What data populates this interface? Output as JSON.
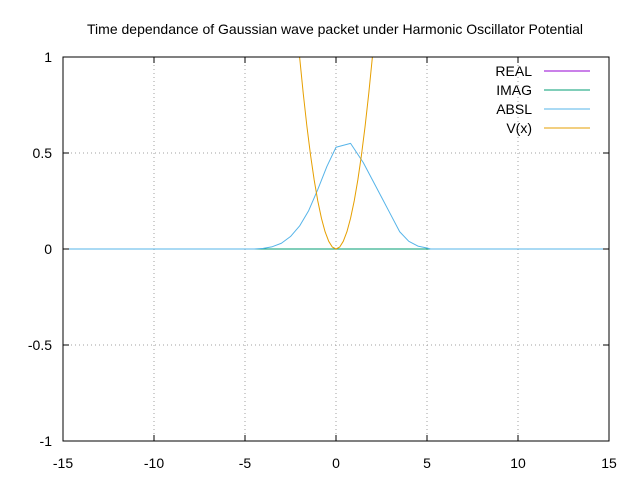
{
  "chart_data": {
    "type": "line",
    "title": "Time dependance of Gaussian wave packet under Harmonic Oscillator Potential",
    "xlabel": "",
    "ylabel": "",
    "xlim": [
      -15,
      15
    ],
    "ylim": [
      -1,
      1
    ],
    "x_ticks": [
      -15,
      -10,
      -5,
      0,
      5,
      10,
      15
    ],
    "y_ticks": [
      -1,
      -0.5,
      0,
      0.5,
      1
    ],
    "x_tick_labels": [
      "-15",
      "-10",
      "-5",
      "0",
      "5",
      "10",
      "15"
    ],
    "y_tick_labels": [
      "-1",
      "-0.5",
      "0",
      "0.5",
      "1"
    ],
    "grid": true,
    "legend_position": "top-right",
    "series": [
      {
        "name": "REAL",
        "color": "#9400d3",
        "x": [
          -15,
          15
        ],
        "y": [
          0,
          0
        ]
      },
      {
        "name": "IMAG",
        "color": "#009e73",
        "x": [
          -15,
          15
        ],
        "y": [
          0,
          0
        ]
      },
      {
        "name": "ABSL",
        "color": "#56b4e9",
        "x": [
          -15,
          -4.5,
          -4,
          -3.5,
          -3,
          -2.5,
          -2,
          -1.5,
          -1,
          -0.5,
          0,
          0.8,
          1.5,
          2,
          2.5,
          3,
          3.5,
          4,
          4.5,
          5,
          5.2,
          15
        ],
        "y": [
          0,
          0,
          0.003,
          0.012,
          0.03,
          0.065,
          0.12,
          0.2,
          0.31,
          0.43,
          0.53,
          0.55,
          0.45,
          0.36,
          0.27,
          0.18,
          0.09,
          0.04,
          0.015,
          0.005,
          0,
          0
        ]
      },
      {
        "name": "V(x)",
        "color": "#e69f00",
        "x": [
          -2.0,
          -1.8,
          -1.6,
          -1.4,
          -1.2,
          -1.0,
          -0.8,
          -0.6,
          -0.4,
          -0.2,
          0,
          0.2,
          0.4,
          0.6,
          0.8,
          1.0,
          1.2,
          1.4,
          1.6,
          1.8,
          2.0
        ],
        "y": [
          1.0,
          0.81,
          0.64,
          0.49,
          0.36,
          0.25,
          0.16,
          0.09,
          0.04,
          0.01,
          0,
          0.01,
          0.04,
          0.09,
          0.16,
          0.25,
          0.36,
          0.49,
          0.64,
          0.81,
          1.0
        ]
      }
    ]
  }
}
